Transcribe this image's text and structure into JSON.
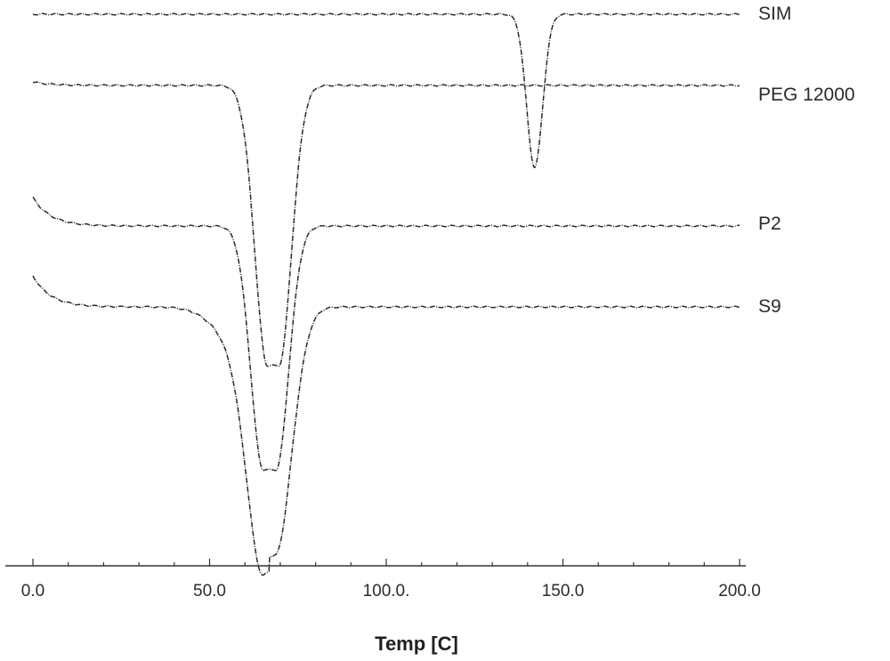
{
  "chart_data": {
    "type": "line",
    "xlabel": "Temp [C]",
    "ylabel": "",
    "xlim": [
      0,
      200
    ],
    "x_ticks": [
      0,
      50,
      100,
      150,
      200
    ],
    "x_tick_labels": [
      "0.0",
      "50.0",
      "100.0.",
      "150.0",
      "200.0"
    ],
    "grid": false,
    "legend": "labels at right end of each curve",
    "series": [
      {
        "name": "SIM",
        "peak_temperature": 142
      },
      {
        "name": "PEG 12000",
        "peak_temperature": 68
      },
      {
        "name": "P2",
        "peak_temperature": 67
      },
      {
        "name": "S9",
        "peak_temperature": 67
      }
    ]
  }
}
